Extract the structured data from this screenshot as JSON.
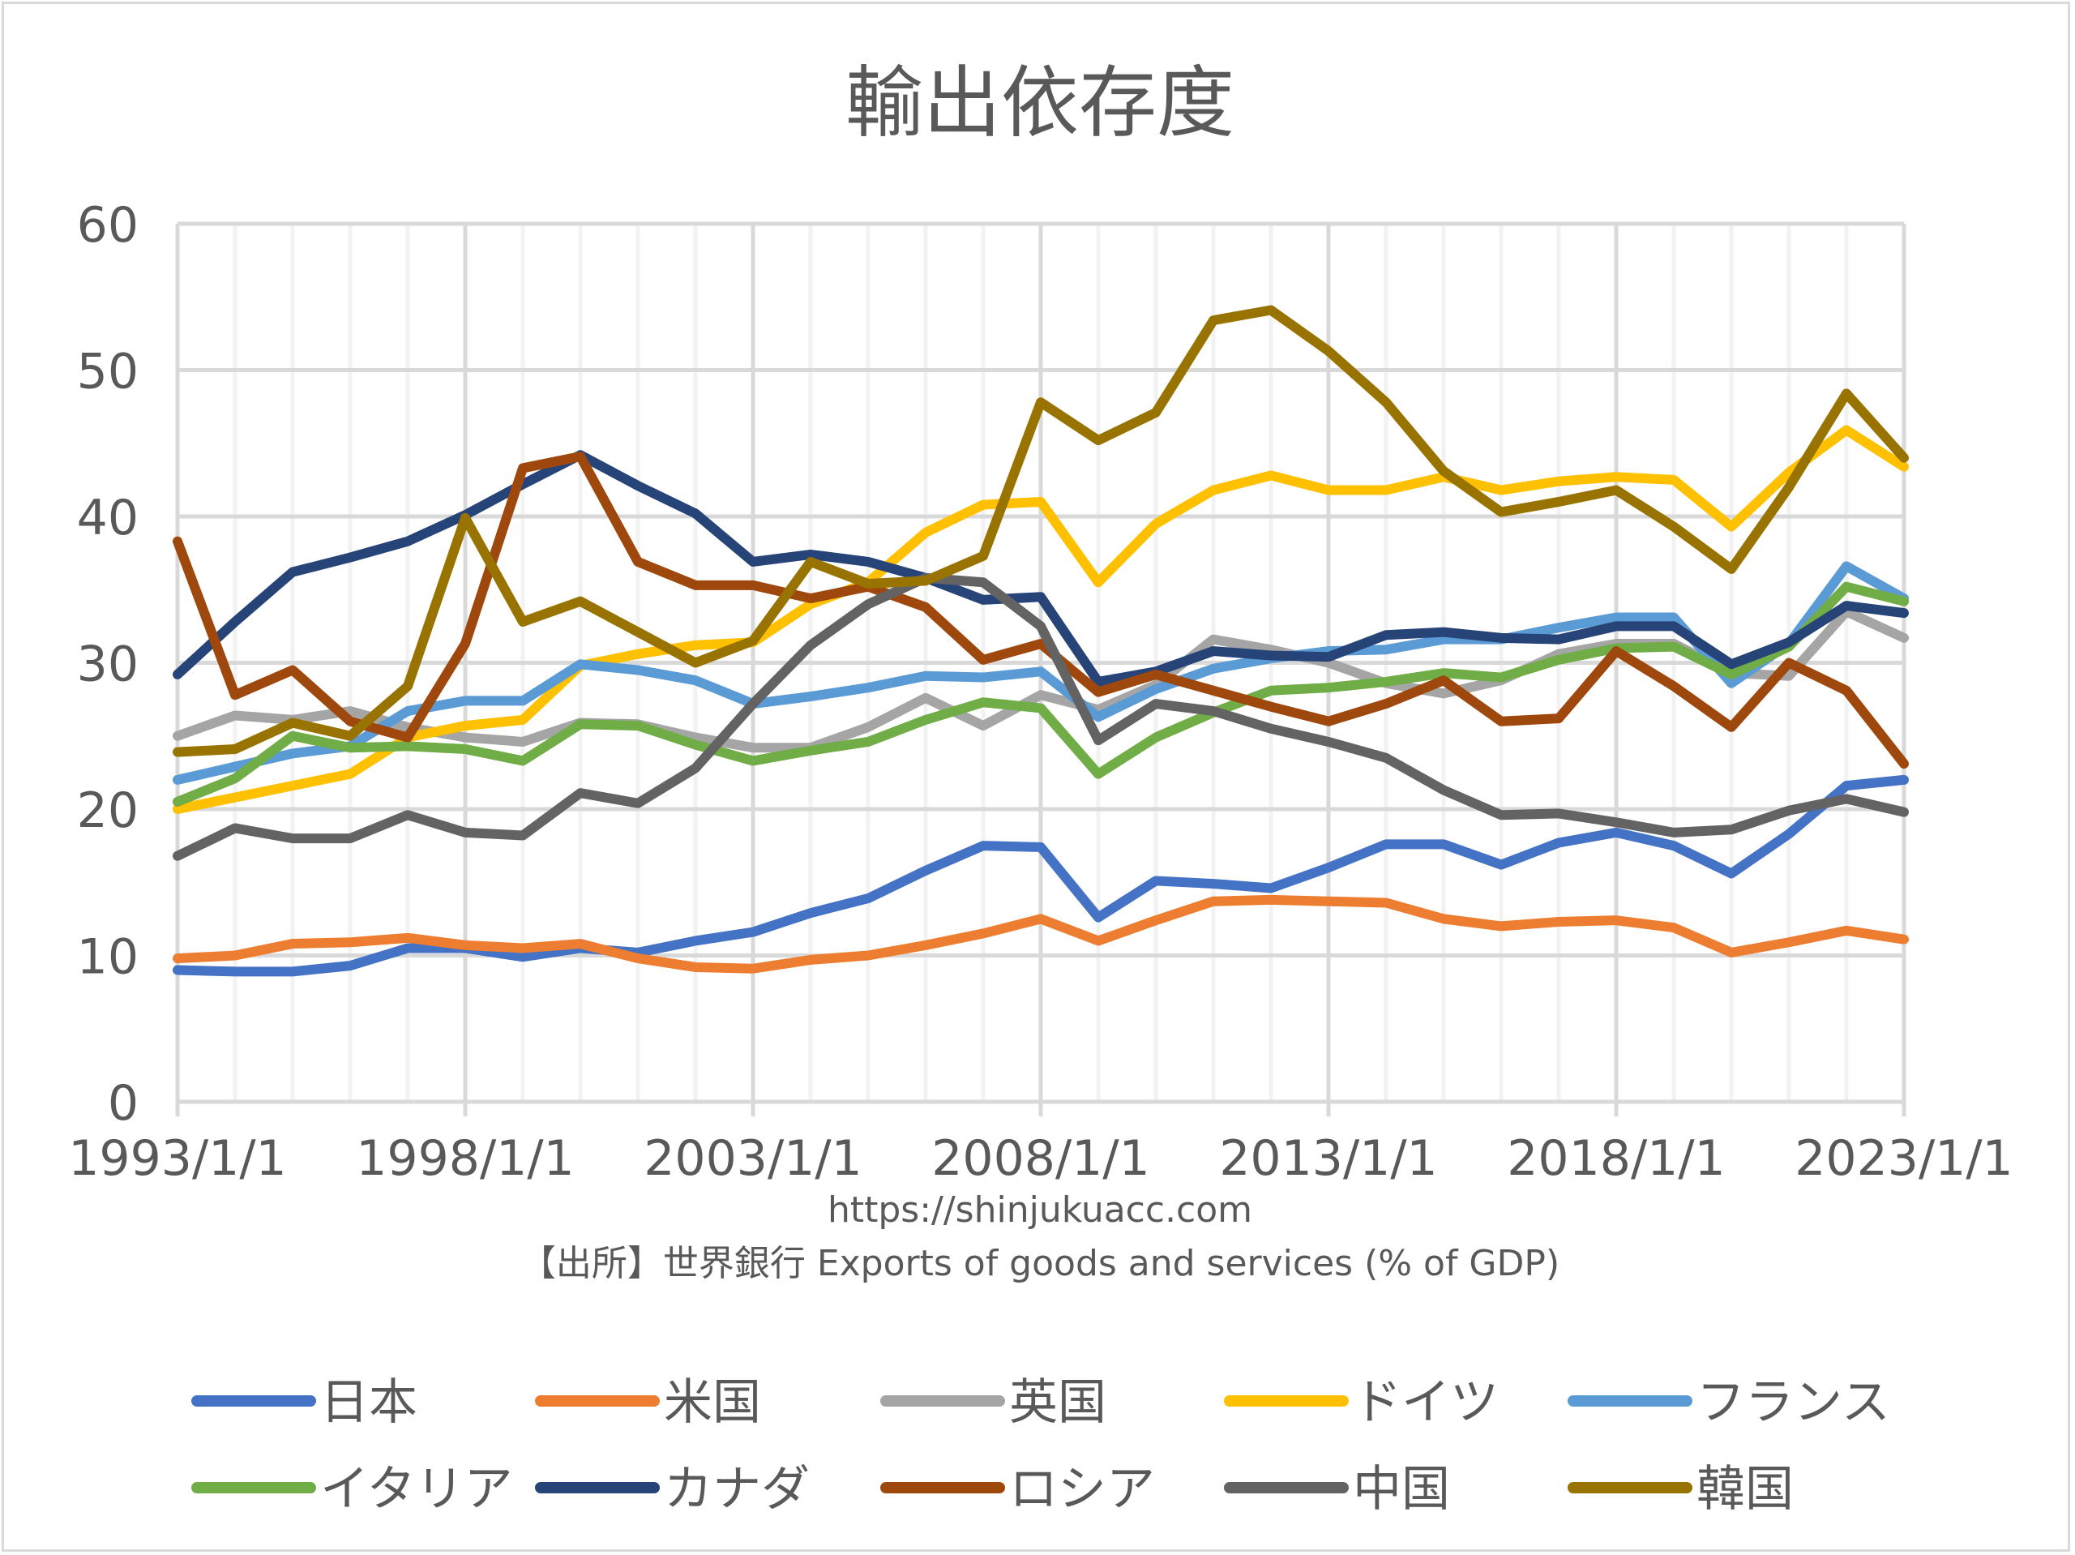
{
  "chart_data": {
    "type": "line",
    "title": "輸出依存度",
    "xlabel": "",
    "ylabel": "",
    "ylim": [
      0,
      60
    ],
    "yticks": [
      "0",
      "10",
      "20",
      "30",
      "40",
      "50",
      "60"
    ],
    "x": [
      1993,
      1994,
      1995,
      1996,
      1997,
      1998,
      1999,
      2000,
      2001,
      2002,
      2003,
      2004,
      2005,
      2006,
      2007,
      2008,
      2009,
      2010,
      2011,
      2012,
      2013,
      2014,
      2015,
      2016,
      2017,
      2018,
      2019,
      2020,
      2021,
      2022,
      2023
    ],
    "xtick_labels": [
      "1993/1/1",
      "1998/1/1",
      "2003/1/1",
      "2008/1/1",
      "2013/1/1",
      "2018/1/1",
      "2023/1/1"
    ],
    "grid": true,
    "legend_position": "bottom",
    "notes": [
      "https://shinjukuacc.com",
      "【出所】世界銀行 Exports of goods and services (% of GDP)"
    ],
    "series": [
      {
        "name": "日本",
        "color": "#4472c4",
        "values": [
          9.0,
          8.9,
          8.9,
          9.3,
          10.5,
          10.5,
          9.9,
          10.5,
          10.2,
          11.0,
          11.6,
          12.9,
          13.9,
          15.8,
          17.5,
          17.4,
          12.6,
          15.1,
          14.9,
          14.6,
          16.0,
          17.6,
          17.6,
          16.2,
          17.7,
          18.4,
          17.5,
          15.6,
          18.3,
          21.6,
          22.0
        ]
      },
      {
        "name": "米国",
        "color": "#ed7d31",
        "values": [
          9.8,
          10.0,
          10.8,
          10.9,
          11.2,
          10.7,
          10.5,
          10.8,
          9.8,
          9.2,
          9.1,
          9.7,
          10.0,
          10.7,
          11.5,
          12.5,
          11.0,
          12.4,
          13.7,
          13.8,
          13.7,
          13.6,
          12.5,
          12.0,
          12.3,
          12.4,
          11.9,
          10.2,
          10.9,
          11.7,
          11.1
        ]
      },
      {
        "name": "英国",
        "color": "#a5a5a5",
        "values": [
          25.0,
          26.4,
          26.1,
          26.7,
          25.6,
          24.9,
          24.6,
          25.9,
          25.8,
          24.9,
          24.2,
          24.2,
          25.6,
          27.6,
          25.7,
          27.8,
          26.8,
          28.5,
          31.6,
          30.9,
          30.0,
          28.6,
          27.9,
          28.8,
          30.6,
          31.3,
          31.3,
          29.3,
          29.1,
          33.5,
          31.7
        ]
      },
      {
        "name": "ドイツ",
        "color": "#ffc000",
        "values": [
          20.0,
          20.8,
          21.6,
          22.4,
          24.9,
          25.7,
          26.1,
          29.8,
          30.6,
          31.2,
          31.4,
          34.0,
          35.5,
          38.9,
          40.8,
          41.0,
          35.5,
          39.5,
          41.8,
          42.8,
          41.8,
          41.8,
          42.7,
          41.8,
          42.4,
          42.7,
          42.5,
          39.3,
          43.0,
          45.9,
          43.4
        ]
      },
      {
        "name": "フランス",
        "color": "#5b9bd5",
        "values": [
          22.0,
          22.9,
          23.8,
          24.3,
          26.7,
          27.4,
          27.4,
          29.9,
          29.5,
          28.8,
          27.2,
          27.7,
          28.3,
          29.1,
          29.0,
          29.4,
          26.3,
          28.2,
          29.6,
          30.3,
          30.8,
          30.9,
          31.6,
          31.6,
          32.4,
          33.1,
          33.1,
          28.6,
          31.3,
          36.6,
          34.4
        ]
      },
      {
        "name": "イタリア",
        "color": "#70ad47",
        "values": [
          20.5,
          22.1,
          25.0,
          24.2,
          24.3,
          24.1,
          23.3,
          25.8,
          25.7,
          24.4,
          23.3,
          24.0,
          24.6,
          26.1,
          27.3,
          26.9,
          22.4,
          24.9,
          26.6,
          28.1,
          28.3,
          28.7,
          29.3,
          29.0,
          30.2,
          31.0,
          31.1,
          29.2,
          31.1,
          35.2,
          34.2
        ]
      },
      {
        "name": "カナダ",
        "color": "#264478",
        "values": [
          29.2,
          32.8,
          36.2,
          37.2,
          38.3,
          40.1,
          42.2,
          44.2,
          42.1,
          40.2,
          36.9,
          37.4,
          36.9,
          35.8,
          34.3,
          34.5,
          28.7,
          29.4,
          30.8,
          30.5,
          30.4,
          31.9,
          32.1,
          31.7,
          31.6,
          32.5,
          32.5,
          29.9,
          31.4,
          33.9,
          33.4
        ]
      },
      {
        "name": "ロシア",
        "color": "#9e480e",
        "values": [
          38.3,
          27.8,
          29.5,
          26.0,
          24.9,
          31.3,
          43.3,
          44.1,
          36.9,
          35.3,
          35.3,
          34.4,
          35.2,
          33.8,
          30.2,
          31.3,
          28.0,
          29.2,
          28.1,
          27.0,
          26.0,
          27.2,
          28.8,
          26.0,
          26.2,
          30.8,
          28.4,
          25.6,
          30.0,
          28.1,
          23.1
        ]
      },
      {
        "name": "中国",
        "color": "#636363",
        "values": [
          16.8,
          18.7,
          18.0,
          18.0,
          19.6,
          18.4,
          18.2,
          21.1,
          20.4,
          22.8,
          27.2,
          31.2,
          34.0,
          35.8,
          35.5,
          32.5,
          24.7,
          27.2,
          26.7,
          25.5,
          24.6,
          23.5,
          21.3,
          19.6,
          19.7,
          19.1,
          18.4,
          18.6,
          19.9,
          20.7,
          19.8
        ]
      },
      {
        "name": "韓国",
        "color": "#997300",
        "values": [
          23.9,
          24.1,
          25.9,
          25.0,
          28.4,
          39.9,
          32.8,
          34.2,
          32.1,
          30.0,
          31.5,
          36.9,
          35.4,
          35.6,
          37.3,
          47.8,
          45.2,
          47.1,
          53.4,
          54.1,
          51.3,
          47.8,
          43.1,
          40.3,
          41.0,
          41.8,
          39.3,
          36.4,
          42.0,
          48.4,
          44.0
        ]
      }
    ]
  }
}
